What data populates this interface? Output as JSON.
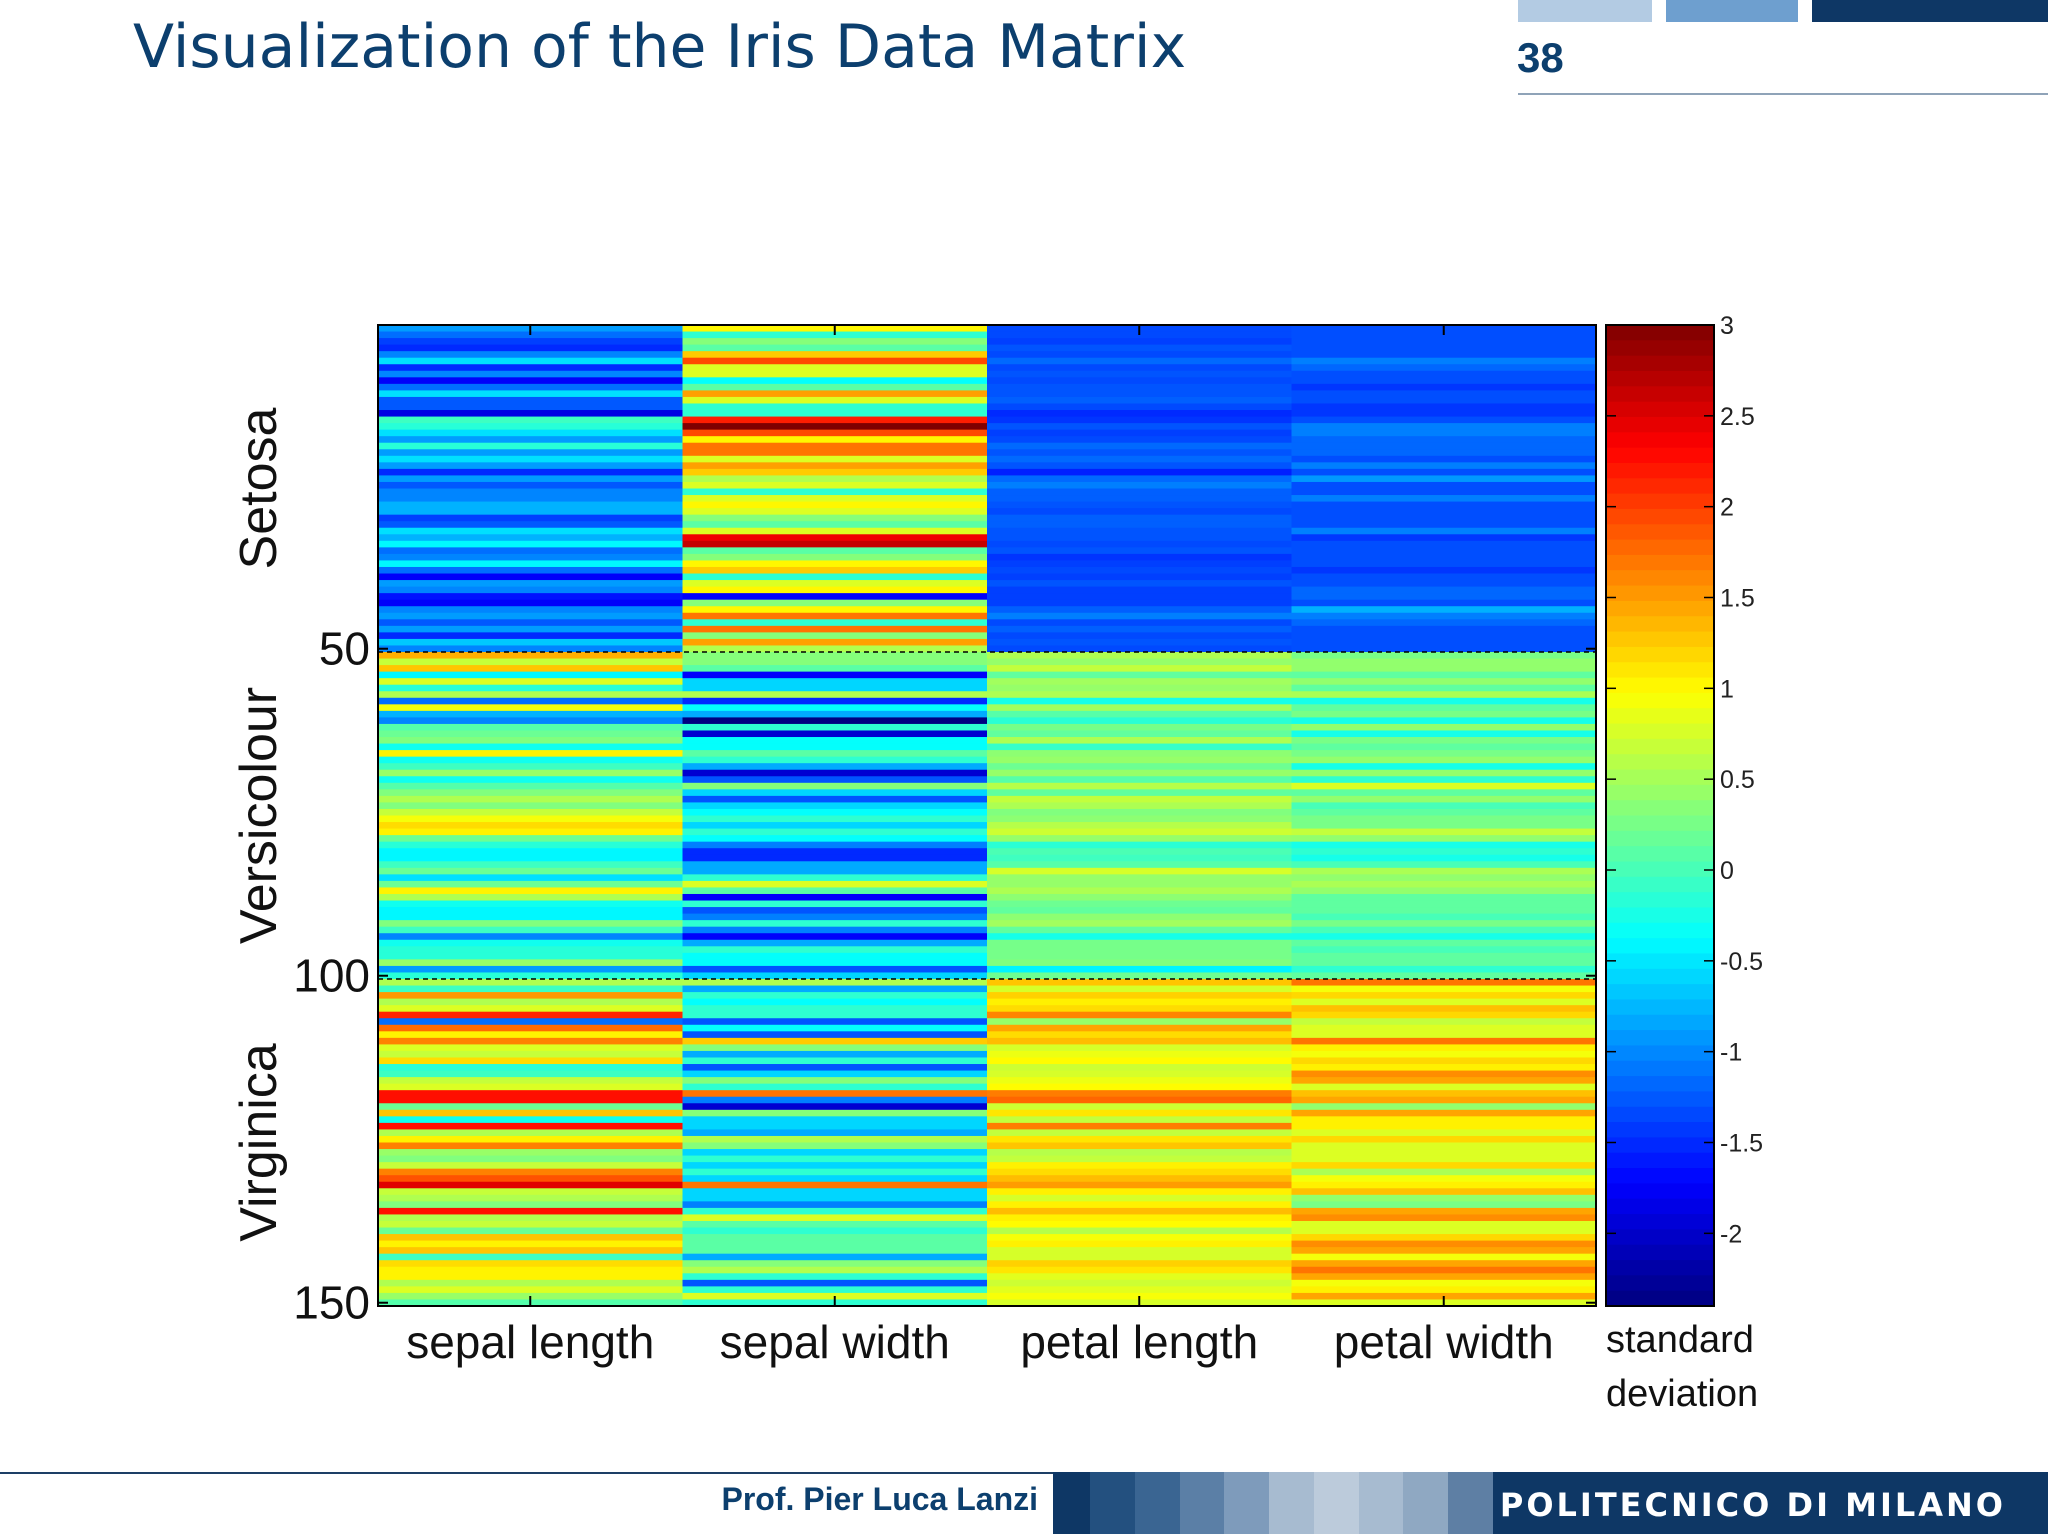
{
  "slide": {
    "title": "Visualization of the Iris Data Matrix",
    "page_number": "38"
  },
  "footer": {
    "author": "Prof. Pier Luca Lanzi",
    "brand": "POLITECNICO DI MILANO"
  },
  "theme": {
    "title_color": "#0c3f6e",
    "header_blocks": [
      "#b3cbe3",
      "#6e9fcf",
      "#0e3765"
    ],
    "footer_band_dark": "#0e3765",
    "footer_band_mid": [
      "#23507f",
      "#3a6592",
      "#5b7fa6",
      "#7e9bbb",
      "#a7bbd0",
      "#bccbdb",
      "#a7bbd0",
      "#8fa8c2",
      "#5e7fa4"
    ]
  },
  "chart_data": {
    "type": "heatmap",
    "columns": [
      "sepal length",
      "sepal width",
      "petal length",
      "petal width"
    ],
    "row_ticks": [
      50,
      100,
      150
    ],
    "row_range": [
      1,
      150
    ],
    "group_labels": [
      "Setosa",
      "Versicolour",
      "Virginica"
    ],
    "group_rows": [
      [
        1,
        50
      ],
      [
        51,
        100
      ],
      [
        101,
        150
      ]
    ],
    "group_separators": [
      50,
      100,
      150
    ],
    "colorbar": {
      "label_lines": [
        "standard",
        "deviation"
      ],
      "range": [
        -2.4,
        3
      ],
      "ticks": [
        3,
        2.5,
        2,
        1.5,
        1,
        0.5,
        0,
        -0.5,
        -1,
        -1.5,
        -2
      ],
      "tick_labels": [
        "3",
        "2.5",
        "2",
        "1.5",
        "1",
        "0.5",
        "0",
        "-0.5",
        "-1",
        "-1.5",
        "-2"
      ],
      "colormap": "jet"
    },
    "values_by_column": [
      [
        -0.9,
        -1.14,
        -1.39,
        -1.51,
        -1.02,
        -0.54,
        -1.51,
        -1.02,
        -1.75,
        -1.14,
        -0.54,
        -1.26,
        -1.26,
        -1.87,
        -0.05,
        -0.17,
        -0.54,
        -0.9,
        -0.17,
        -0.9,
        -0.54,
        -0.9,
        -1.51,
        -0.9,
        -1.26,
        -1.02,
        -1.02,
        -0.78,
        -0.78,
        -1.39,
        -1.26,
        -0.54,
        -0.78,
        -0.41,
        -1.14,
        -1.02,
        -0.41,
        -1.14,
        -1.75,
        -0.9,
        -1.02,
        -1.63,
        -1.75,
        -1.02,
        -0.9,
        -1.26,
        -0.9,
        -1.51,
        -0.66,
        -1.02,
        1.4,
        0.67,
        1.28,
        -0.41,
        0.79,
        -0.17,
        0.55,
        -1.14,
        0.92,
        -0.78,
        -1.02,
        0.07,
        0.19,
        0.31,
        -0.29,
        1.04,
        -0.29,
        -0.05,
        0.43,
        -0.29,
        0.07,
        0.31,
        0.55,
        0.31,
        0.67,
        0.92,
        1.16,
        1.04,
        0.19,
        -0.17,
        -0.41,
        -0.41,
        -0.05,
        0.19,
        -0.54,
        0.19,
        1.04,
        0.55,
        -0.29,
        -0.41,
        -0.41,
        0.31,
        -0.05,
        -1.02,
        -0.29,
        -0.17,
        -0.17,
        0.43,
        -0.9,
        -0.17,
        0.55,
        -0.05,
        1.52,
        0.55,
        0.79,
        2.13,
        -1.14,
        1.76,
        1.04,
        1.64,
        0.79,
        0.67,
        1.16,
        -0.17,
        -0.05,
        0.67,
        0.79,
        2.25,
        2.25,
        0.19,
        1.28,
        -0.29,
        2.25,
        0.55,
        1.04,
        1.64,
        0.43,
        0.31,
        0.67,
        1.64,
        1.89,
        2.49,
        0.67,
        0.55,
        0.31,
        2.25,
        0.55,
        0.67,
        0.19,
        1.28,
        1.04,
        1.28,
        -0.05,
        1.16,
        1.04,
        1.04,
        0.55,
        0.79,
        0.43,
        0.07
      ],
      [
        1.02,
        -0.13,
        0.33,
        0.1,
        1.25,
        1.94,
        0.79,
        0.79,
        -0.36,
        0.1,
        1.48,
        0.79,
        -0.13,
        -0.13,
        2.17,
        3.09,
        1.94,
        1.02,
        1.71,
        1.71,
        0.79,
        1.48,
        1.25,
        0.56,
        0.79,
        -0.13,
        0.79,
        1.02,
        0.79,
        0.33,
        0.1,
        0.79,
        2.4,
        2.63,
        0.1,
        0.33,
        1.02,
        1.25,
        -0.13,
        0.79,
        1.02,
        -1.74,
        0.33,
        1.02,
        1.71,
        -0.13,
        1.71,
        0.33,
        1.48,
        0.56,
        0.33,
        0.33,
        0.1,
        -1.74,
        -0.59,
        -0.59,
        0.56,
        -1.51,
        -0.36,
        -0.82,
        -2.43,
        -0.13,
        -1.97,
        -0.36,
        -0.36,
        0.1,
        -0.13,
        -0.82,
        -1.97,
        -1.28,
        0.33,
        -0.59,
        -1.28,
        -0.59,
        -0.36,
        -0.13,
        -0.59,
        -0.13,
        -0.36,
        -1.05,
        -1.51,
        -1.51,
        -0.82,
        -0.82,
        -0.13,
        0.79,
        0.1,
        -1.74,
        -0.13,
        -1.28,
        -1.05,
        -0.13,
        -1.05,
        -1.74,
        -0.82,
        -0.13,
        -0.36,
        -0.36,
        -1.28,
        -0.59,
        0.56,
        -0.82,
        -0.13,
        -0.36,
        -0.13,
        -0.13,
        -1.28,
        -0.36,
        -1.28,
        1.25,
        0.33,
        -0.82,
        -0.13,
        -1.28,
        -0.59,
        0.33,
        -0.13,
        1.71,
        -1.05,
        -1.97,
        0.33,
        -0.59,
        -0.59,
        -0.82,
        0.56,
        0.33,
        -0.59,
        -0.13,
        -0.59,
        -0.13,
        -0.59,
        1.71,
        -0.59,
        -0.59,
        -1.05,
        -0.13,
        0.79,
        0.1,
        -0.13,
        0.1,
        0.1,
        0.1,
        -0.82,
        0.33,
        0.56,
        -0.13,
        -1.28,
        -0.13,
        0.79,
        -0.13
      ],
      [
        -1.34,
        -1.34,
        -1.39,
        -1.28,
        -1.34,
        -1.17,
        -1.34,
        -1.28,
        -1.34,
        -1.28,
        -1.28,
        -1.22,
        -1.34,
        -1.51,
        -1.45,
        -1.28,
        -1.39,
        -1.34,
        -1.17,
        -1.28,
        -1.17,
        -1.28,
        -1.56,
        -1.17,
        -1.05,
        -1.22,
        -1.22,
        -1.28,
        -1.34,
        -1.22,
        -1.22,
        -1.28,
        -1.28,
        -1.34,
        -1.28,
        -1.45,
        -1.39,
        -1.34,
        -1.39,
        -1.28,
        -1.39,
        -1.39,
        -1.39,
        -1.22,
        -1.05,
        -1.34,
        -1.22,
        -1.34,
        -1.28,
        -1.34,
        0.54,
        0.42,
        0.65,
        0.14,
        0.48,
        0.42,
        0.54,
        -0.26,
        0.48,
        0.08,
        -0.15,
        0.25,
        0.14,
        0.54,
        -0.09,
        0.37,
        0.42,
        0.2,
        0.42,
        0.08,
        0.59,
        0.14,
        0.65,
        0.54,
        0.31,
        0.37,
        0.59,
        0.71,
        0.42,
        -0.15,
        0.02,
        -0.04,
        0.08,
        0.76,
        0.42,
        0.42,
        0.54,
        0.37,
        0.2,
        0.14,
        0.37,
        0.48,
        0.14,
        -0.26,
        0.25,
        0.25,
        0.25,
        0.31,
        -0.43,
        0.2,
        1.28,
        0.76,
        1.22,
        1.05,
        1.16,
        1.62,
        0.42,
        1.45,
        1.16,
        1.33,
        0.76,
        0.88,
        0.99,
        0.71,
        0.76,
        0.88,
        0.99,
        1.67,
        1.79,
        0.71,
        1.11,
        0.65,
        1.67,
        0.65,
        1.11,
        1.28,
        0.59,
        0.65,
        1.05,
        1.16,
        1.33,
        1.5,
        1.05,
        0.76,
        1.05,
        1.33,
        1.05,
        0.99,
        0.59,
        0.94,
        1.05,
        0.76,
        0.76,
        1.22,
        1.11,
        0.82,
        0.71,
        0.82,
        0.94,
        0.76
      ],
      [
        -1.31,
        -1.31,
        -1.31,
        -1.31,
        -1.31,
        -1.05,
        -1.18,
        -1.31,
        -1.31,
        -1.44,
        -1.31,
        -1.31,
        -1.44,
        -1.44,
        -1.31,
        -1.05,
        -1.05,
        -1.18,
        -1.18,
        -1.18,
        -1.31,
        -1.05,
        -1.31,
        -0.92,
        -1.31,
        -1.31,
        -1.05,
        -1.31,
        -1.31,
        -1.31,
        -1.31,
        -1.05,
        -1.44,
        -1.31,
        -1.31,
        -1.31,
        -1.31,
        -1.44,
        -1.31,
        -1.31,
        -1.18,
        -1.18,
        -1.31,
        -0.79,
        -1.05,
        -1.18,
        -1.31,
        -1.31,
        -1.31,
        -1.31,
        0.26,
        0.4,
        0.4,
        0.13,
        0.4,
        0.13,
        0.53,
        -0.26,
        0.13,
        0.26,
        -0.26,
        0.4,
        -0.26,
        0.26,
        0.13,
        0.26,
        0.4,
        -0.26,
        0.4,
        -0.13,
        0.79,
        0.13,
        0.4,
        0.0,
        0.13,
        0.26,
        0.26,
        0.66,
        0.4,
        -0.26,
        -0.13,
        -0.26,
        0.0,
        0.53,
        0.4,
        0.53,
        0.4,
        0.13,
        0.13,
        0.13,
        0.0,
        0.26,
        0.0,
        -0.26,
        0.13,
        0.0,
        0.13,
        0.13,
        -0.13,
        0.13,
        1.71,
        0.92,
        1.18,
        0.79,
        1.31,
        1.18,
        0.66,
        0.79,
        0.79,
        1.71,
        1.05,
        0.92,
        1.18,
        1.05,
        1.58,
        1.45,
        0.79,
        1.31,
        1.45,
        0.4,
        1.45,
        1.05,
        1.05,
        0.79,
        1.18,
        0.79,
        0.79,
        0.79,
        1.18,
        0.53,
        0.92,
        1.05,
        1.31,
        0.4,
        0.26,
        1.45,
        1.58,
        0.79,
        0.79,
        1.18,
        1.58,
        1.45,
        0.92,
        1.45,
        1.71,
        1.45,
        0.92,
        1.05,
        1.45,
        0.79
      ]
    ]
  }
}
